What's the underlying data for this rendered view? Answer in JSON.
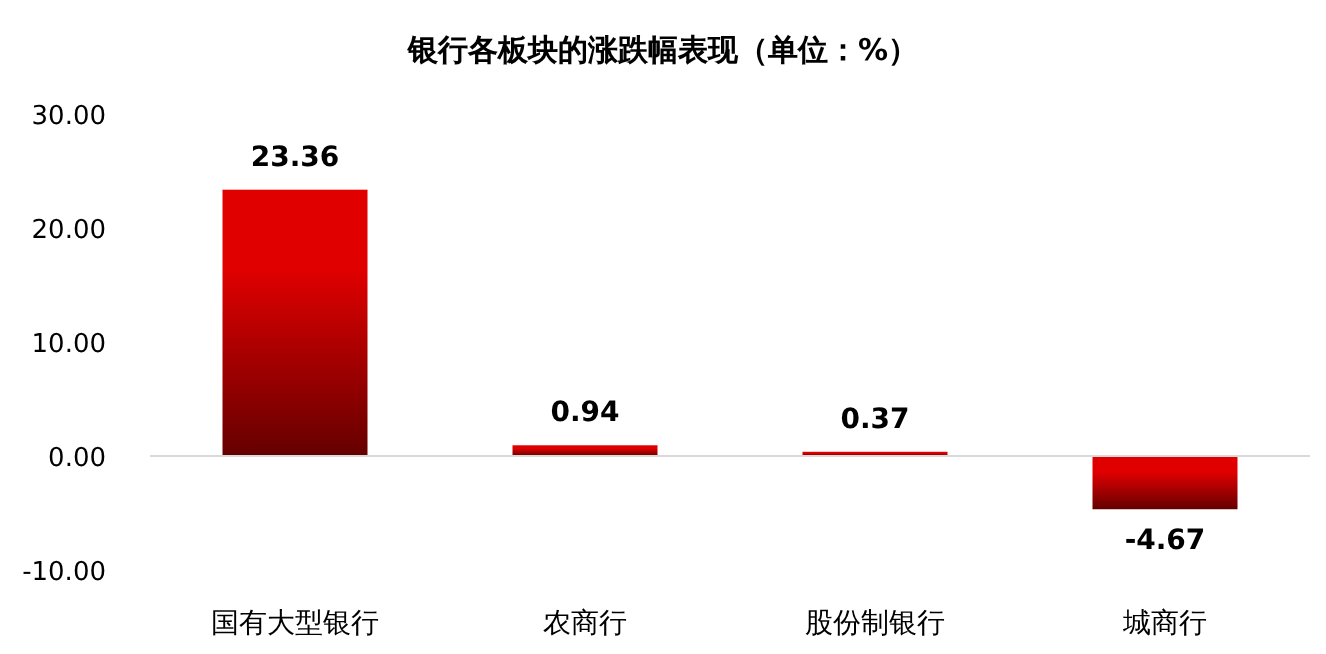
{
  "chart_data": {
    "type": "bar",
    "title": "银行各板块的涨跌幅表现（单位：%）",
    "categories": [
      "国有大型银行",
      "农商行",
      "股份制银行",
      "城商行"
    ],
    "values": [
      23.36,
      0.94,
      0.37,
      -4.67
    ],
    "color": "#e00000",
    "ylim": [
      -10,
      30
    ],
    "yticks": [
      {
        "value": -10,
        "label": "-10.00"
      },
      {
        "value": 0,
        "label": "0.00"
      },
      {
        "value": 10,
        "label": "10.00"
      },
      {
        "value": 20,
        "label": "20.00"
      },
      {
        "value": 30,
        "label": "30.00"
      }
    ],
    "data_labels": true
  }
}
